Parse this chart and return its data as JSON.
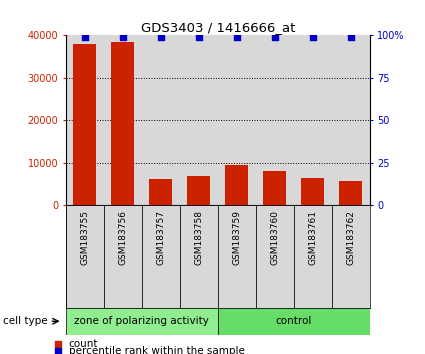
{
  "title": "GDS3403 / 1416666_at",
  "samples": [
    "GSM183755",
    "GSM183756",
    "GSM183757",
    "GSM183758",
    "GSM183759",
    "GSM183760",
    "GSM183761",
    "GSM183762"
  ],
  "counts": [
    38000,
    38500,
    6200,
    7000,
    9500,
    8000,
    6500,
    5800
  ],
  "percentile_ranks": [
    99,
    99,
    99,
    99,
    99,
    99,
    99,
    99
  ],
  "ylim_left": [
    0,
    40000
  ],
  "ylim_right": [
    0,
    100
  ],
  "yticks_left": [
    0,
    10000,
    20000,
    30000,
    40000
  ],
  "yticks_right": [
    0,
    25,
    50,
    75,
    100
  ],
  "bar_color": "#cc2200",
  "dot_color": "#0000cc",
  "group1_label": "zone of polarizing activity",
  "group2_label": "control",
  "group1_color": "#90ee90",
  "group2_color": "#66dd66",
  "group1_samples": 4,
  "group2_samples": 4,
  "cell_type_label": "cell type",
  "legend_count_label": "count",
  "legend_pct_label": "percentile rank within the sample",
  "bg_color": "#ffffff",
  "plot_bg_color": "#d8d8d8",
  "tick_label_color_left": "#cc2200",
  "tick_label_color_right": "#0000cc",
  "grid_color": "#000000",
  "yticks_left_include_40000": true
}
